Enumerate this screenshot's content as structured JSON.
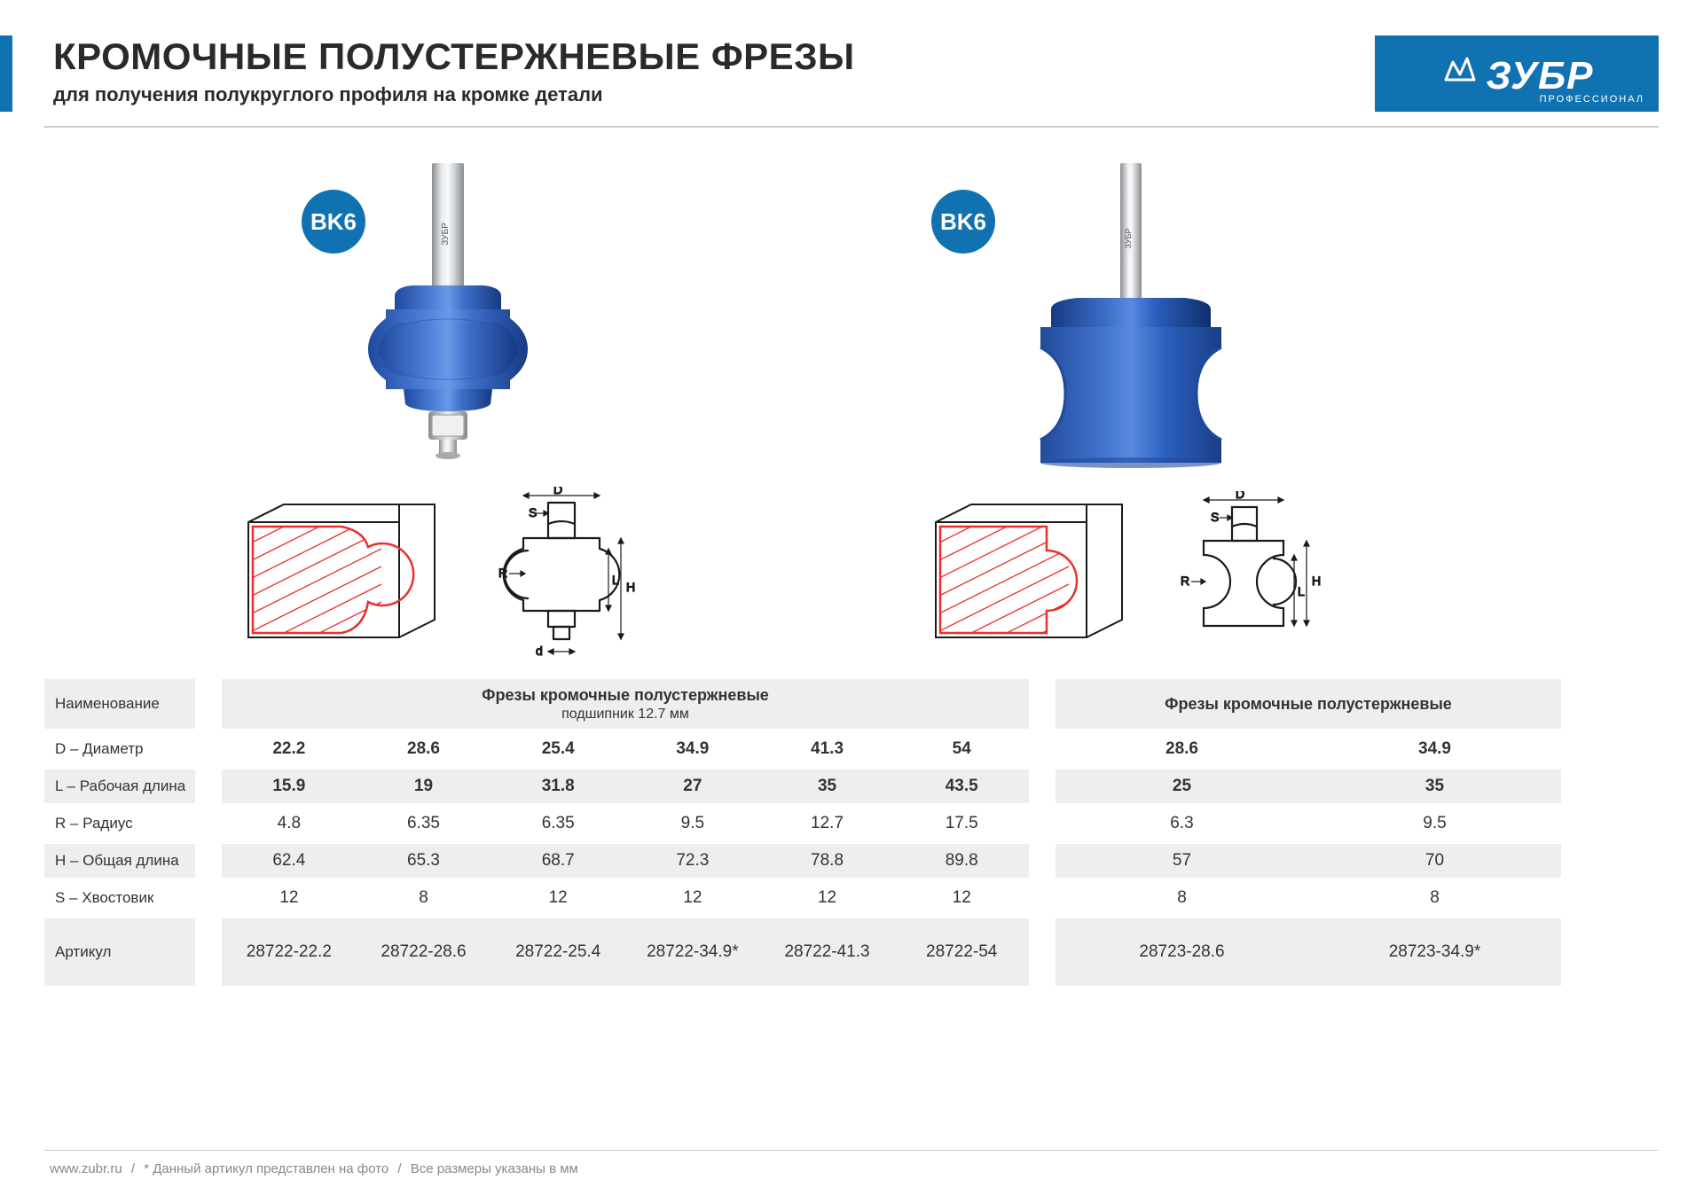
{
  "header": {
    "title": "КРОМОЧНЫЕ ПОЛУСТЕРЖНЕВЫЕ ФРЕЗЫ",
    "subtitle": "для получения полукруглого профиля на кромке детали"
  },
  "logo": {
    "main": "ЗУБР",
    "sub": "ПРОФЕССИОНАЛ"
  },
  "badge": "BK6",
  "colors": {
    "brand": "#1172b1",
    "tool_body": "#2a5fbd",
    "tool_body_dark": "#1e4a9e",
    "tool_body_light": "#4d7fd9",
    "shank": "#bfc2c5",
    "shank_dark": "#8a8d90",
    "profile_stroke": "#e8302e",
    "diagram_stroke": "#1a1a1a",
    "row_alt": "#eeeeee"
  },
  "diagrams": {
    "labels1": {
      "D": "D",
      "S": "S",
      "R": "R",
      "H": "H",
      "L": "L",
      "d": "d"
    },
    "labels2": {
      "D": "D",
      "S": "S",
      "R": "R",
      "H": "H",
      "L": "L"
    }
  },
  "table": {
    "row_labels": {
      "name": "Наименование",
      "D": "D – Диаметр",
      "L": "L – Рабочая длина",
      "R": "R – Радиус",
      "H": "H – Общая длина",
      "S": "S – Хвостовик",
      "article": "Артикул"
    },
    "sections": [
      {
        "header": "Фрезы кромочные полустержневые",
        "subheader": "подшипник 12.7 мм",
        "cols": [
          {
            "D": "22.2",
            "L": "15.9",
            "R": "4.8",
            "H": "62.4",
            "S": "12",
            "art": "28722-22.2"
          },
          {
            "D": "28.6",
            "L": "19",
            "R": "6.35",
            "H": "65.3",
            "S": "8",
            "art": "28722-28.6"
          },
          {
            "D": "25.4",
            "L": "31.8",
            "R": "6.35",
            "H": "68.7",
            "S": "12",
            "art": "28722-25.4"
          },
          {
            "D": "34.9",
            "L": "27",
            "R": "9.5",
            "H": "72.3",
            "S": "12",
            "art": "28722-34.9*"
          },
          {
            "D": "41.3",
            "L": "35",
            "R": "12.7",
            "H": "78.8",
            "S": "12",
            "art": "28722-41.3"
          },
          {
            "D": "54",
            "L": "43.5",
            "R": "17.5",
            "H": "89.8",
            "S": "12",
            "art": "28722-54"
          }
        ]
      },
      {
        "header": "Фрезы кромочные полустержневые",
        "subheader": "",
        "cols": [
          {
            "D": "28.6",
            "L": "25",
            "R": "6.3",
            "H": "57",
            "S": "8",
            "art": "28723-28.6"
          },
          {
            "D": "34.9",
            "L": "35",
            "R": "9.5",
            "H": "70",
            "S": "8",
            "art": "28723-34.9*"
          }
        ]
      }
    ]
  },
  "footer": {
    "site": "www.zubr.ru",
    "note1": "* Данный артикул представлен на фото",
    "note2": "Все размеры указаны в мм"
  }
}
